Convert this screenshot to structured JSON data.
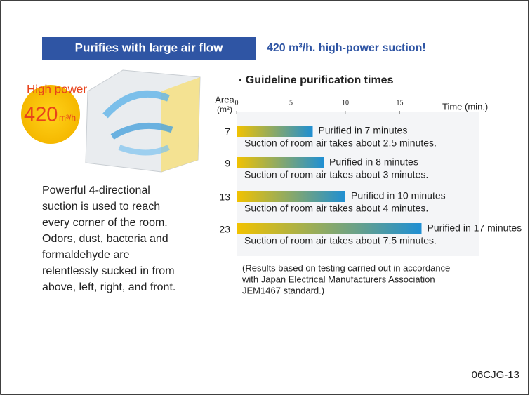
{
  "header": {
    "title": "Purifies with large air flow",
    "subtitle": "420 m³/h. high-power suction!"
  },
  "badge": {
    "label": "High power",
    "value": "420",
    "unit": "m³/h."
  },
  "description": [
    "Powerful 4-directional",
    "suction is used to reach",
    "every corner of the room.",
    "Odors, dust, bacteria and",
    "formaldehyde are",
    "relentlessly sucked in from",
    "above, left, right, and front."
  ],
  "chart_data": {
    "type": "bar",
    "orientation": "horizontal",
    "title": "· Guideline purification times",
    "y_label": "Area",
    "y_unit": "(m²)",
    "x_label": "Time (min.)",
    "categories": [
      "7",
      "9",
      "13",
      "23"
    ],
    "values": [
      7,
      8,
      10,
      17
    ],
    "value_labels": [
      "Purified in 7 minutes",
      "Purified in 8 minutes",
      "Purified in 10 minutes",
      "Purified in 17 minutes"
    ],
    "notes": [
      "Suction of room air takes about 2.5 minutes.",
      "Suction of room air takes about 3 minutes.",
      "Suction of room air takes about 4 minutes.",
      "Suction of room air takes about 7.5 minutes."
    ],
    "xlim": [
      0,
      20
    ],
    "xticks": [
      0,
      5,
      10,
      15
    ],
    "colors": [
      "#f2c200",
      "#1f8fd3"
    ],
    "footnote": [
      "(Results based on testing carried out in accordance",
      "with Japan Electrical Manufacturers Association",
      "JEM1467 standard.)"
    ]
  },
  "page_id": "06CJG-13"
}
